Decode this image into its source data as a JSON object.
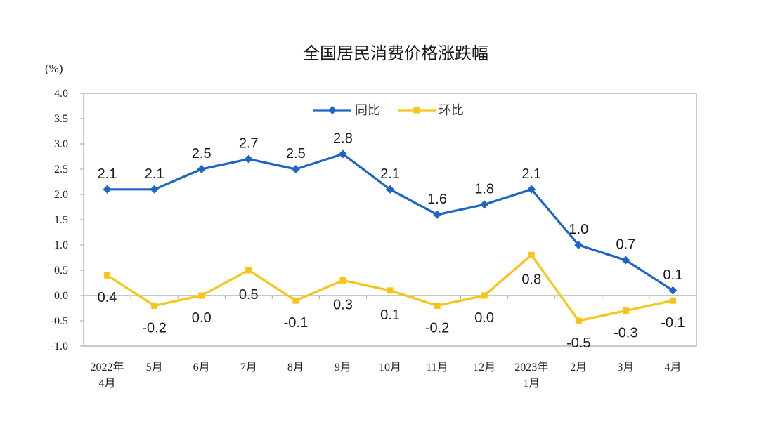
{
  "chart_data": {
    "type": "line",
    "title": "全国居民消费价格涨跌幅",
    "unit": "(%)",
    "categories": [
      [
        "2022年",
        "4月"
      ],
      [
        "5月"
      ],
      [
        "6月"
      ],
      [
        "7月"
      ],
      [
        "8月"
      ],
      [
        "9月"
      ],
      [
        "10月"
      ],
      [
        "11月"
      ],
      [
        "12月"
      ],
      [
        "2023年",
        "1月"
      ],
      [
        "2月"
      ],
      [
        "3月"
      ],
      [
        "4月"
      ]
    ],
    "ylim": [
      -1.0,
      4.0
    ],
    "yticks": [
      "4.0",
      "3.5",
      "3.0",
      "2.5",
      "2.0",
      "1.5",
      "1.0",
      "0.5",
      "0.0",
      "-0.5",
      "-1.0"
    ],
    "grid": false,
    "legend_position": "top-center",
    "series": [
      {
        "name": "同比",
        "color": "#1f66c4",
        "marker": "diamond",
        "values": [
          2.1,
          2.1,
          2.5,
          2.7,
          2.5,
          2.8,
          2.1,
          1.6,
          1.8,
          2.1,
          1.0,
          0.7,
          0.1
        ],
        "labels": [
          "2.1",
          "2.1",
          "2.5",
          "2.7",
          "2.5",
          "2.8",
          "2.1",
          "1.6",
          "1.8",
          "2.1",
          "1.0",
          "0.7",
          "0.1"
        ]
      },
      {
        "name": "环比",
        "color": "#f5c518",
        "marker": "square",
        "values": [
          0.4,
          -0.2,
          0.0,
          0.5,
          -0.1,
          0.3,
          0.1,
          -0.2,
          0.0,
          0.8,
          -0.5,
          -0.3,
          -0.1
        ],
        "labels": [
          "0.4",
          "-0.2",
          "0.0",
          "0.5",
          "-0.1",
          "0.3",
          "0.1",
          "-0.2",
          "0.0",
          "0.8",
          "-0.5",
          "-0.3",
          "-0.1"
        ]
      }
    ]
  }
}
